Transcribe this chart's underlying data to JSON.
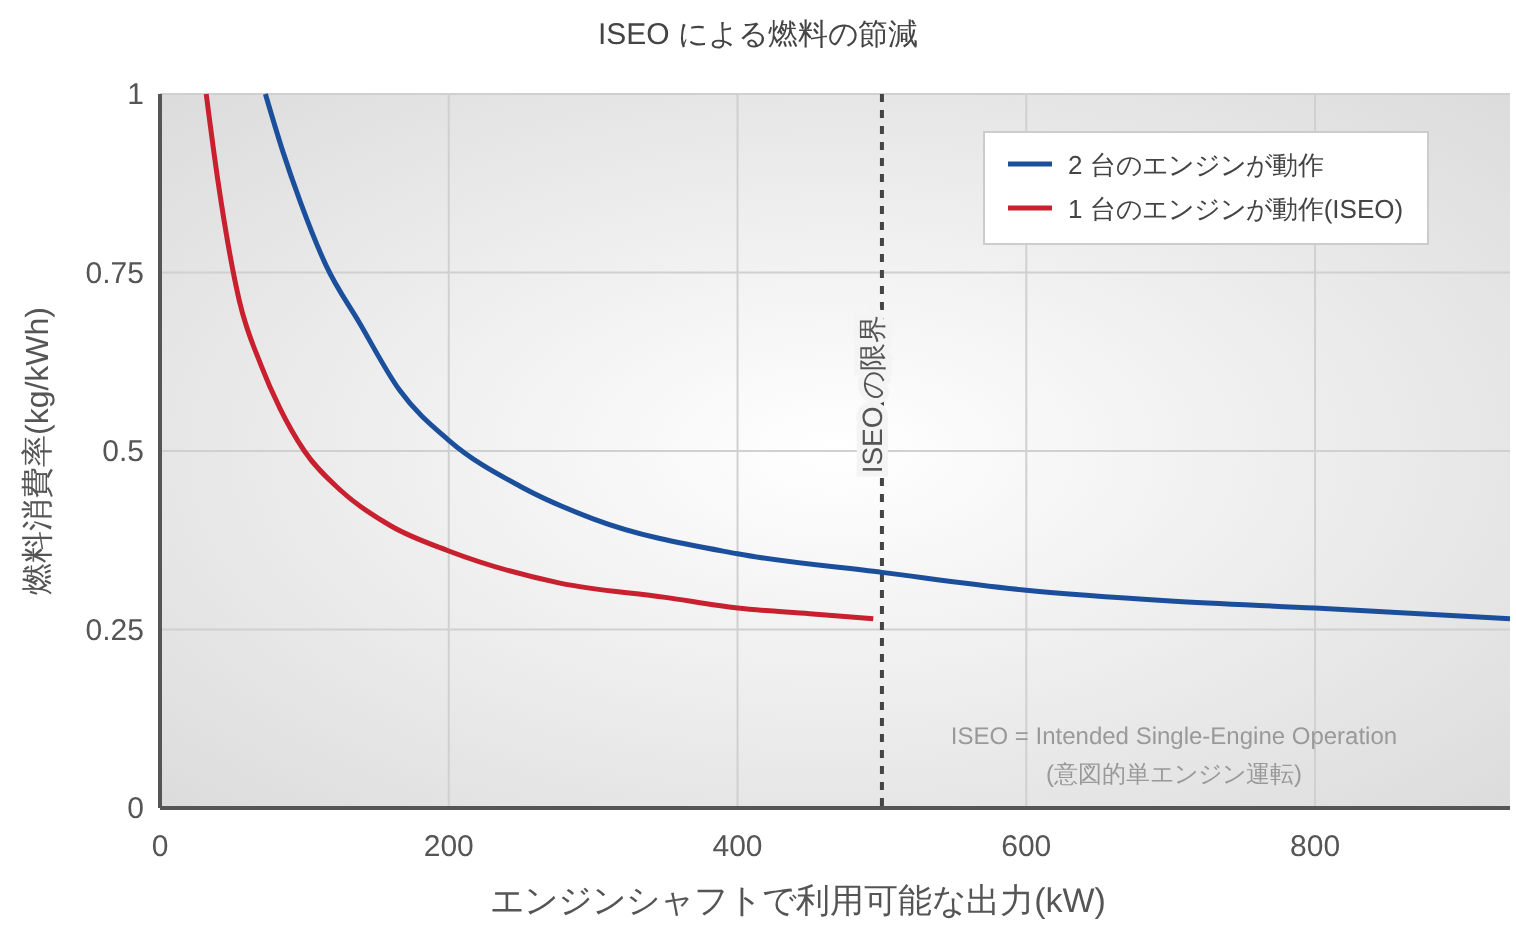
{
  "chart_data": {
    "type": "line",
    "title": "ISEO による燃料の節減",
    "xlabel": "エンジンシャフトで利用可能な出力(kW)",
    "ylabel": "燃料消費率(kg/kWh)",
    "xlim": [
      0,
      935
    ],
    "ylim": [
      0,
      1
    ],
    "xticks": [
      0,
      200,
      400,
      600,
      800
    ],
    "yticks": [
      0,
      0.25,
      {
        "value": 0.5,
        "label": "0.5"
      },
      0.75,
      1
    ],
    "grid": true,
    "legend": "top right",
    "line_style": "solid",
    "marker": "none",
    "series": [
      {
        "name": "2 台のエンジンが動作",
        "color": "#1b4f9c",
        "x": [
          73,
          85,
          97,
          115,
          138,
          166,
          200,
          250,
          300,
          400,
          500,
          600,
          700,
          800,
          935
        ],
        "values": [
          1.0,
          0.92,
          0.85,
          0.76,
          0.68,
          0.585,
          0.515,
          0.45,
          0.405,
          0.356,
          0.33,
          0.305,
          0.29,
          0.28,
          0.265
        ]
      },
      {
        "name": "1 台のエンジンが動作(ISEO)",
        "color": "#c8202f",
        "x": [
          32,
          40,
          55,
          70,
          83,
          100,
          125,
          160,
          200,
          277,
          350,
          400,
          450,
          494
        ],
        "values": [
          1.0,
          0.88,
          0.71,
          0.62,
          0.56,
          0.5,
          0.445,
          0.395,
          0.36,
          0.315,
          0.295,
          0.28,
          0.272,
          0.265
        ]
      }
    ],
    "ref_lines": [
      {
        "axis": "x",
        "value": 500,
        "label": "ISEO の限界",
        "color": "#444444",
        "line_style": "dashed"
      }
    ],
    "annotations": [
      "ISEO = Intended Single-Engine Operation",
      "(意図的単エンジン運転)"
    ]
  }
}
